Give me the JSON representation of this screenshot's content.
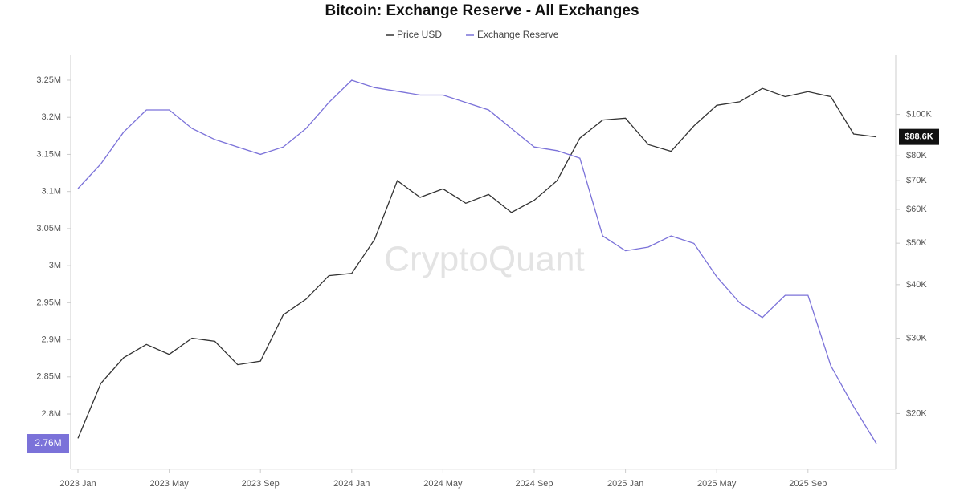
{
  "chart_data": {
    "type": "line",
    "title": "Bitcoin: Exchange Reserve - All Exchanges",
    "watermark": "CryptoQuant",
    "x": [
      "2023-01",
      "2023-02",
      "2023-03",
      "2023-04",
      "2023-05",
      "2023-06",
      "2023-07",
      "2023-08",
      "2023-09",
      "2023-10",
      "2023-11",
      "2023-12",
      "2024-01",
      "2024-02",
      "2024-03",
      "2024-04",
      "2024-05",
      "2024-06",
      "2024-07",
      "2024-08",
      "2024-09",
      "2024-10",
      "2024-11",
      "2024-12",
      "2025-01",
      "2025-02",
      "2025-03",
      "2025-04",
      "2025-05",
      "2025-06",
      "2025-07",
      "2025-08",
      "2025-09",
      "2025-10",
      "2025-11",
      "2025-12"
    ],
    "xlim": [
      "2023-01",
      "2025-12"
    ],
    "xticks": [
      {
        "value": "2023-01",
        "label": "2023 Jan"
      },
      {
        "value": "2023-05",
        "label": "2023 May"
      },
      {
        "value": "2023-09",
        "label": "2023 Sep"
      },
      {
        "value": "2024-01",
        "label": "2024 Jan"
      },
      {
        "value": "2024-05",
        "label": "2024 May"
      },
      {
        "value": "2024-09",
        "label": "2024 Sep"
      },
      {
        "value": "2025-01",
        "label": "2025 Jan"
      },
      {
        "value": "2025-05",
        "label": "2025 May"
      },
      {
        "value": "2025-09",
        "label": "2025 Sep"
      }
    ],
    "ylim": [
      2740000,
      3290000
    ],
    "yticks": [
      {
        "value": 2800000,
        "label": "2.8M"
      },
      {
        "value": 2850000,
        "label": "2.85M"
      },
      {
        "value": 2900000,
        "label": "2.9M"
      },
      {
        "value": 2950000,
        "label": "2.95M"
      },
      {
        "value": 3000000,
        "label": "3M"
      },
      {
        "value": 3050000,
        "label": "3.05M"
      },
      {
        "value": 3100000,
        "label": "3.1M"
      },
      {
        "value": 3150000,
        "label": "3.15M"
      },
      {
        "value": 3200000,
        "label": "3.2M"
      },
      {
        "value": 3250000,
        "label": "3.25M"
      }
    ],
    "y2lim": [
      15700,
      141000
    ],
    "y2scale": "log",
    "y2ticks": [
      {
        "value": 20000,
        "label": "$20K"
      },
      {
        "value": 30000,
        "label": "$30K"
      },
      {
        "value": 40000,
        "label": "$40K"
      },
      {
        "value": 50000,
        "label": "$50K"
      },
      {
        "value": 60000,
        "label": "$60K"
      },
      {
        "value": 70000,
        "label": "$70K"
      },
      {
        "value": 80000,
        "label": "$80K"
      },
      {
        "value": 100000,
        "label": "$100K"
      }
    ],
    "series": [
      {
        "name": "Price USD",
        "color": "#333333",
        "axis": "y2",
        "last_label": "$88.6K",
        "values": [
          17500,
          23500,
          27000,
          29000,
          27500,
          30000,
          29500,
          26000,
          26500,
          34000,
          37000,
          42000,
          42500,
          51000,
          70000,
          64000,
          67000,
          62000,
          65000,
          59000,
          63000,
          70000,
          88000,
          97000,
          98000,
          85000,
          82000,
          94000,
          105000,
          107000,
          115000,
          110000,
          113000,
          110000,
          90000,
          88600
        ]
      },
      {
        "name": "Exchange Reserve",
        "color": "#7b72d9",
        "axis": "y",
        "last_label": "2.76M",
        "values": [
          3104000,
          3137000,
          3180000,
          3210000,
          3210000,
          3185000,
          3170000,
          3160000,
          3150000,
          3160000,
          3185000,
          3220000,
          3250000,
          3240000,
          3235000,
          3230000,
          3230000,
          3220000,
          3210000,
          3185000,
          3160000,
          3155000,
          3145000,
          3040000,
          3020000,
          3025000,
          3040000,
          3030000,
          2985000,
          2950000,
          2930000,
          2960000,
          2960000,
          2865000,
          2810000,
          2760000
        ]
      }
    ]
  }
}
